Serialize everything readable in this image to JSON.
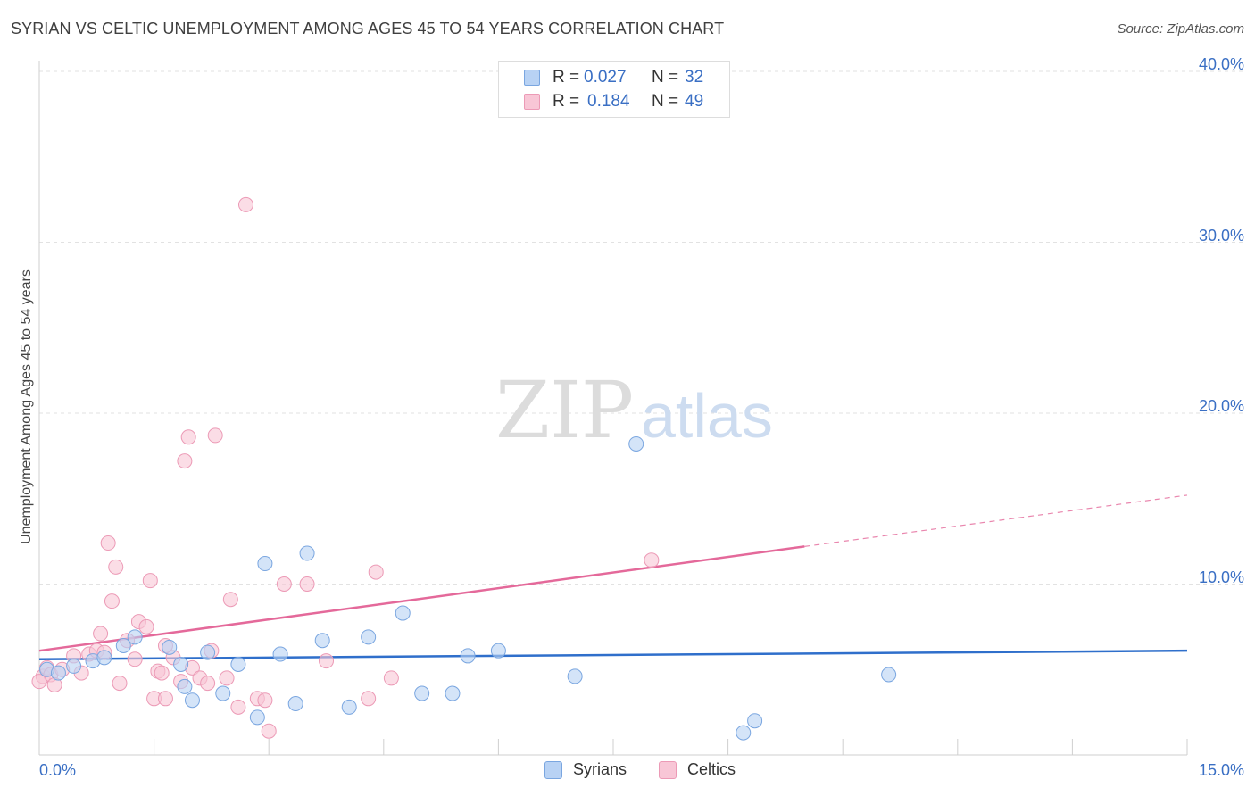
{
  "header": {
    "title": "SYRIAN VS CELTIC UNEMPLOYMENT AMONG AGES 45 TO 54 YEARS CORRELATION CHART",
    "source": "Source: ZipAtlas.com"
  },
  "legend": {
    "rows": [
      {
        "r_label": "R =",
        "r_value": "0.027",
        "n_label": "N =",
        "n_value": "32"
      },
      {
        "r_label": "R =",
        "r_value": "0.184",
        "n_label": "N =",
        "n_value": "49"
      }
    ]
  },
  "watermark": {
    "zip": "ZIP",
    "atlas": "atlas"
  },
  "colors": {
    "syrians_fill": "#b8d2f4",
    "syrians_stroke": "#7aa6e0",
    "syrians_line": "#2f6fcb",
    "celtics_fill": "#f8c6d6",
    "celtics_stroke": "#ec9ab6",
    "celtics_line": "#e4699a",
    "axis_text": "#3a6fc4",
    "grid": "#e2e2e2"
  },
  "chart_data": {
    "type": "scatter",
    "title": "SYRIAN VS CELTIC UNEMPLOYMENT AMONG AGES 45 TO 54 YEARS CORRELATION CHART",
    "xlabel": "",
    "ylabel": "Unemployment Among Ages 45 to 54 years",
    "xlim": [
      0,
      15
    ],
    "ylim": [
      0,
      40
    ],
    "x_tick_labels": [
      "0.0%",
      "15.0%"
    ],
    "y_tick_values": [
      10,
      20,
      30,
      40
    ],
    "y_tick_labels": [
      "10.0%",
      "20.0%",
      "30.0%",
      "40.0%"
    ],
    "series": [
      {
        "name": "Syrians",
        "R": 0.027,
        "N": 32,
        "trend": {
          "x0": 0,
          "y0": 5.6,
          "x1": 15,
          "y1": 6.1,
          "dashed_from": 15
        },
        "points": [
          [
            0.1,
            5.0
          ],
          [
            0.25,
            4.8
          ],
          [
            0.45,
            5.2
          ],
          [
            0.7,
            5.5
          ],
          [
            0.85,
            5.7
          ],
          [
            1.1,
            6.4
          ],
          [
            1.25,
            6.9
          ],
          [
            1.7,
            6.3
          ],
          [
            1.85,
            5.3
          ],
          [
            1.9,
            4.0
          ],
          [
            2.0,
            3.2
          ],
          [
            2.2,
            6.0
          ],
          [
            2.4,
            3.6
          ],
          [
            2.6,
            5.3
          ],
          [
            2.85,
            2.2
          ],
          [
            2.95,
            11.2
          ],
          [
            3.15,
            5.9
          ],
          [
            3.35,
            3.0
          ],
          [
            3.5,
            11.8
          ],
          [
            3.7,
            6.7
          ],
          [
            4.05,
            2.8
          ],
          [
            4.3,
            6.9
          ],
          [
            4.75,
            8.3
          ],
          [
            5.0,
            3.6
          ],
          [
            5.4,
            3.6
          ],
          [
            5.6,
            5.8
          ],
          [
            6.0,
            6.1
          ],
          [
            7.0,
            4.6
          ],
          [
            7.8,
            18.2
          ],
          [
            9.2,
            1.3
          ],
          [
            9.35,
            2.0
          ],
          [
            11.1,
            4.7
          ]
        ]
      },
      {
        "name": "Celtics",
        "R": 0.184,
        "N": 49,
        "trend": {
          "x0": 0,
          "y0": 6.1,
          "x1": 10,
          "y1": 12.2,
          "dashed_from": 10,
          "x_end": 15,
          "y_end": 15.2
        },
        "points": [
          [
            0.05,
            4.6
          ],
          [
            0.1,
            5.1
          ],
          [
            0.15,
            4.7
          ],
          [
            0.2,
            4.1
          ],
          [
            0.3,
            5.0
          ],
          [
            0.45,
            5.8
          ],
          [
            0.55,
            4.8
          ],
          [
            0.65,
            5.9
          ],
          [
            0.75,
            6.1
          ],
          [
            0.8,
            7.1
          ],
          [
            0.85,
            6.0
          ],
          [
            0.9,
            12.4
          ],
          [
            0.95,
            9.0
          ],
          [
            1.0,
            11.0
          ],
          [
            1.05,
            4.2
          ],
          [
            1.15,
            6.7
          ],
          [
            1.25,
            5.6
          ],
          [
            1.3,
            7.8
          ],
          [
            1.4,
            7.5
          ],
          [
            1.45,
            10.2
          ],
          [
            1.55,
            4.9
          ],
          [
            1.5,
            3.3
          ],
          [
            1.6,
            4.8
          ],
          [
            1.65,
            6.4
          ],
          [
            1.65,
            3.3
          ],
          [
            1.75,
            5.7
          ],
          [
            1.85,
            4.3
          ],
          [
            1.9,
            17.2
          ],
          [
            1.95,
            18.6
          ],
          [
            2.0,
            5.1
          ],
          [
            2.1,
            4.5
          ],
          [
            2.2,
            4.2
          ],
          [
            2.25,
            6.1
          ],
          [
            2.3,
            18.7
          ],
          [
            2.45,
            4.5
          ],
          [
            2.5,
            9.1
          ],
          [
            2.6,
            2.8
          ],
          [
            2.7,
            32.2
          ],
          [
            2.85,
            3.3
          ],
          [
            2.95,
            3.2
          ],
          [
            3.0,
            1.4
          ],
          [
            3.2,
            10.0
          ],
          [
            3.5,
            10.0
          ],
          [
            3.75,
            5.5
          ],
          [
            4.3,
            3.3
          ],
          [
            4.4,
            10.7
          ],
          [
            4.6,
            4.5
          ],
          [
            8.0,
            11.4
          ],
          [
            0.0,
            4.3
          ]
        ]
      }
    ]
  },
  "bottom_legend": [
    {
      "label": "Syrians"
    },
    {
      "label": "Celtics"
    }
  ]
}
